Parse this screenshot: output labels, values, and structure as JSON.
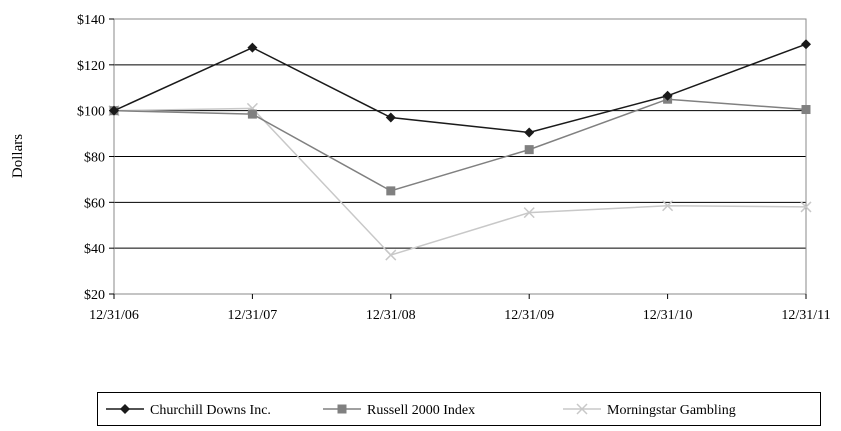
{
  "chart_data": {
    "type": "line",
    "ylabel": "Dollars",
    "xlabel": "",
    "categories": [
      "12/31/06",
      "12/31/07",
      "12/31/08",
      "12/31/09",
      "12/31/10",
      "12/31/11"
    ],
    "ylim": [
      20,
      140
    ],
    "yticks": [
      20,
      40,
      60,
      80,
      100,
      120,
      140
    ],
    "ytick_labels": [
      "$20",
      "$40",
      "$60",
      "$80",
      "$100",
      "$120",
      "$140"
    ],
    "grid": true,
    "legend_position": "bottom",
    "series": [
      {
        "name": "Churchill Downs Inc.",
        "values": [
          100,
          127.5,
          97,
          90.5,
          106.5,
          129
        ],
        "color": "#1a1a1a",
        "marker": "diamond"
      },
      {
        "name": "Russell 2000 Index",
        "values": [
          100,
          98.5,
          65,
          83,
          105,
          100.5
        ],
        "color": "#808080",
        "marker": "square"
      },
      {
        "name": "Morningstar Gambling",
        "values": [
          100,
          101,
          37,
          55.5,
          58.5,
          58
        ],
        "color": "#c8c8c8",
        "marker": "x"
      }
    ]
  }
}
